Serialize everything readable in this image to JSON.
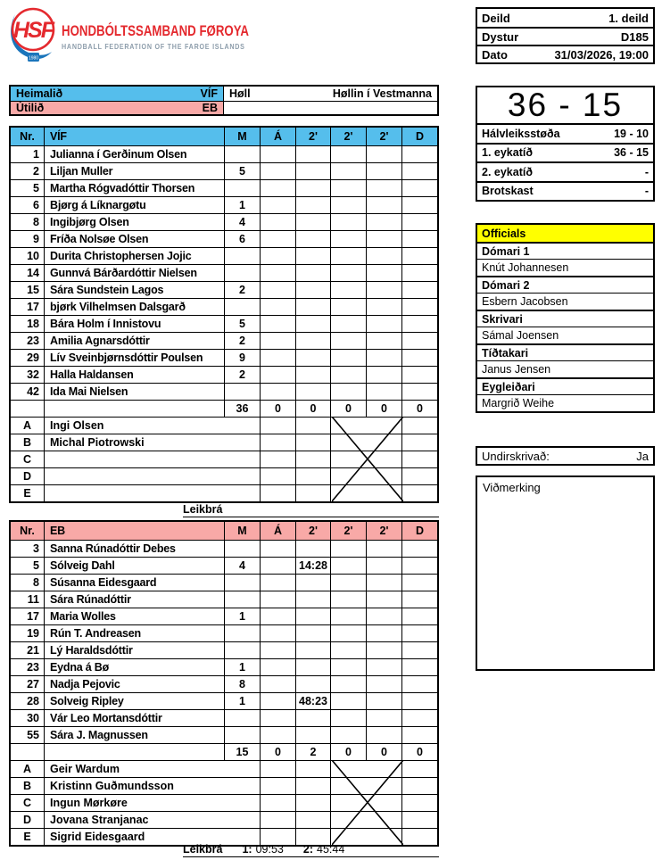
{
  "header": {
    "logo_monogram": "HSF",
    "logo_year": "1980",
    "org_name": "HONDBÓLTSSAMBAND FØROYA",
    "org_subtitle": "HANDBALL FEDERATION OF THE FAROE ISLANDS"
  },
  "match_info": {
    "rows": [
      {
        "label": "Deild",
        "value": "1. deild"
      },
      {
        "label": "Dystur",
        "value": "D185"
      },
      {
        "label": "Dato",
        "value": "31/03/2026, 19:00"
      }
    ]
  },
  "teams_header": {
    "home_label": "Heimalið",
    "home_value": "VÍF",
    "away_label": "Útilið",
    "away_value": "EB",
    "hall_label": "Høll",
    "hall_value": "Høllin í Vestmanna"
  },
  "score": {
    "final": "36 - 15",
    "rows": [
      {
        "label": "Hálvleiksstøða",
        "value": "19 - 10"
      },
      {
        "label": "1. eykatíð",
        "value": "36 - 15"
      },
      {
        "label": "2. eykatíð",
        "value": "-"
      },
      {
        "label": "Brotskast",
        "value": "-"
      }
    ]
  },
  "officials_panel": {
    "title": "Officials",
    "entries": [
      {
        "role": "Dómari 1",
        "name": "Knút Johannesen"
      },
      {
        "role": "Dómari 2",
        "name": "Esbern Jacobsen"
      },
      {
        "role": "Skrivari",
        "name": "Sámal Joensen"
      },
      {
        "role": "Tíðtakari",
        "name": "Janus Jensen"
      },
      {
        "role": "Eygleiðari",
        "name": "Margrið Weihe"
      }
    ]
  },
  "signed": {
    "label": "Undirskrivað:",
    "value": "Ja"
  },
  "remarks": {
    "label": "Viðmerking",
    "value": ""
  },
  "roster": {
    "nr_header": "Nr.",
    "stat_columns": [
      "M",
      "Á",
      "2'",
      "2'",
      "2'",
      "D"
    ]
  },
  "teams": [
    {
      "name": "VÍF",
      "header_color": "#55BEEC",
      "players": [
        {
          "nr": "1",
          "name": "Julianna í Gerðinum Olsen",
          "stats": [
            "",
            "",
            "",
            "",
            "",
            ""
          ]
        },
        {
          "nr": "2",
          "name": "Liljan Muller",
          "stats": [
            "5",
            "",
            "",
            "",
            "",
            ""
          ]
        },
        {
          "nr": "5",
          "name": "Martha Rógvadóttir Thorsen",
          "stats": [
            "",
            "",
            "",
            "",
            "",
            ""
          ]
        },
        {
          "nr": "6",
          "name": "Bjørg á Líknargøtu",
          "stats": [
            "1",
            "",
            "",
            "",
            "",
            ""
          ]
        },
        {
          "nr": "8",
          "name": "Ingibjørg Olsen",
          "stats": [
            "4",
            "",
            "",
            "",
            "",
            ""
          ]
        },
        {
          "nr": "9",
          "name": "Fríða Nolsøe Olsen",
          "stats": [
            "6",
            "",
            "",
            "",
            "",
            ""
          ]
        },
        {
          "nr": "10",
          "name": "Durita Christophersen Jojic",
          "stats": [
            "",
            "",
            "",
            "",
            "",
            ""
          ]
        },
        {
          "nr": "14",
          "name": "Gunnvá Bárðardóttir Nielsen",
          "stats": [
            "",
            "",
            "",
            "",
            "",
            ""
          ]
        },
        {
          "nr": "15",
          "name": "Sára Sundstein Lagos",
          "stats": [
            "2",
            "",
            "",
            "",
            "",
            ""
          ]
        },
        {
          "nr": "17",
          "name": "bjørk Vilhelmsen Dalsgarð",
          "stats": [
            "",
            "",
            "",
            "",
            "",
            ""
          ]
        },
        {
          "nr": "18",
          "name": "Bára Holm í Innistovu",
          "stats": [
            "5",
            "",
            "",
            "",
            "",
            ""
          ]
        },
        {
          "nr": "23",
          "name": "Amilia Agnarsdóttir",
          "stats": [
            "2",
            "",
            "",
            "",
            "",
            ""
          ]
        },
        {
          "nr": "29",
          "name": "Lív Sveinbjørnsdóttir Poulsen",
          "stats": [
            "9",
            "",
            "",
            "",
            "",
            ""
          ]
        },
        {
          "nr": "32",
          "name": "Halla Haldansen",
          "stats": [
            "2",
            "",
            "",
            "",
            "",
            ""
          ]
        },
        {
          "nr": "42",
          "name": "Ida Mai Nielsen",
          "stats": [
            "",
            "",
            "",
            "",
            "",
            ""
          ]
        }
      ],
      "totals": [
        "36",
        "0",
        "0",
        "0",
        "0",
        "0"
      ],
      "bench": [
        {
          "letter": "A",
          "name": "Ingi Olsen"
        },
        {
          "letter": "B",
          "name": "Michal Piotrowski"
        },
        {
          "letter": "C",
          "name": ""
        },
        {
          "letter": "D",
          "name": ""
        },
        {
          "letter": "E",
          "name": ""
        }
      ],
      "footer": {
        "label": "Leikbrá",
        "items": []
      }
    },
    {
      "name": "EB",
      "header_color": "#F8A9A7",
      "players": [
        {
          "nr": "3",
          "name": "Sanna Rúnadóttir Debes",
          "stats": [
            "",
            "",
            "",
            "",
            "",
            ""
          ]
        },
        {
          "nr": "5",
          "name": "Sólveig Dahl",
          "stats": [
            "4",
            "",
            "14:28",
            "",
            "",
            ""
          ]
        },
        {
          "nr": "8",
          "name": "Súsanna Eidesgaard",
          "stats": [
            "",
            "",
            "",
            "",
            "",
            ""
          ]
        },
        {
          "nr": "11",
          "name": "Sára Rúnadóttir",
          "stats": [
            "",
            "",
            "",
            "",
            "",
            ""
          ]
        },
        {
          "nr": "17",
          "name": "Maria Wolles",
          "stats": [
            "1",
            "",
            "",
            "",
            "",
            ""
          ]
        },
        {
          "nr": "19",
          "name": "Rún T. Andreasen",
          "stats": [
            "",
            "",
            "",
            "",
            "",
            ""
          ]
        },
        {
          "nr": "21",
          "name": "Lý Haraldsdóttir",
          "stats": [
            "",
            "",
            "",
            "",
            "",
            ""
          ]
        },
        {
          "nr": "23",
          "name": "Eydna á Bø",
          "stats": [
            "1",
            "",
            "",
            "",
            "",
            ""
          ]
        },
        {
          "nr": "27",
          "name": "Nadja Pejovic",
          "stats": [
            "8",
            "",
            "",
            "",
            "",
            ""
          ]
        },
        {
          "nr": "28",
          "name": "Solveig Ripley",
          "stats": [
            "1",
            "",
            "48:23",
            "",
            "",
            ""
          ]
        },
        {
          "nr": "30",
          "name": "Vár Leo Mortansdóttir",
          "stats": [
            "",
            "",
            "",
            "",
            "",
            ""
          ]
        },
        {
          "nr": "55",
          "name": "Sára J. Magnussen",
          "stats": [
            "",
            "",
            "",
            "",
            "",
            ""
          ]
        }
      ],
      "totals": [
        "15",
        "0",
        "2",
        "0",
        "0",
        "0"
      ],
      "bench": [
        {
          "letter": "A",
          "name": "Geir Wardum"
        },
        {
          "letter": "B",
          "name": "Kristinn Guðmundsson"
        },
        {
          "letter": "C",
          "name": "Ingun Mørkøre"
        },
        {
          "letter": "D",
          "name": "Jovana Stranjanac"
        },
        {
          "letter": "E",
          "name": "Sigrid Eidesgaard"
        }
      ],
      "footer": {
        "label": "Leikbrá",
        "items": [
          {
            "k": "1:",
            "v": "09:53"
          },
          {
            "k": "2:",
            "v": "45:44"
          }
        ]
      }
    }
  ],
  "colors": {
    "home_header": "#55BEEC",
    "away_header": "#F8A9A7",
    "officials_bg": "#FFFF00",
    "brand_red": "#E4292E",
    "subtitle_gray": "#8D9DAB",
    "logo_blue": "#1B75BB"
  }
}
